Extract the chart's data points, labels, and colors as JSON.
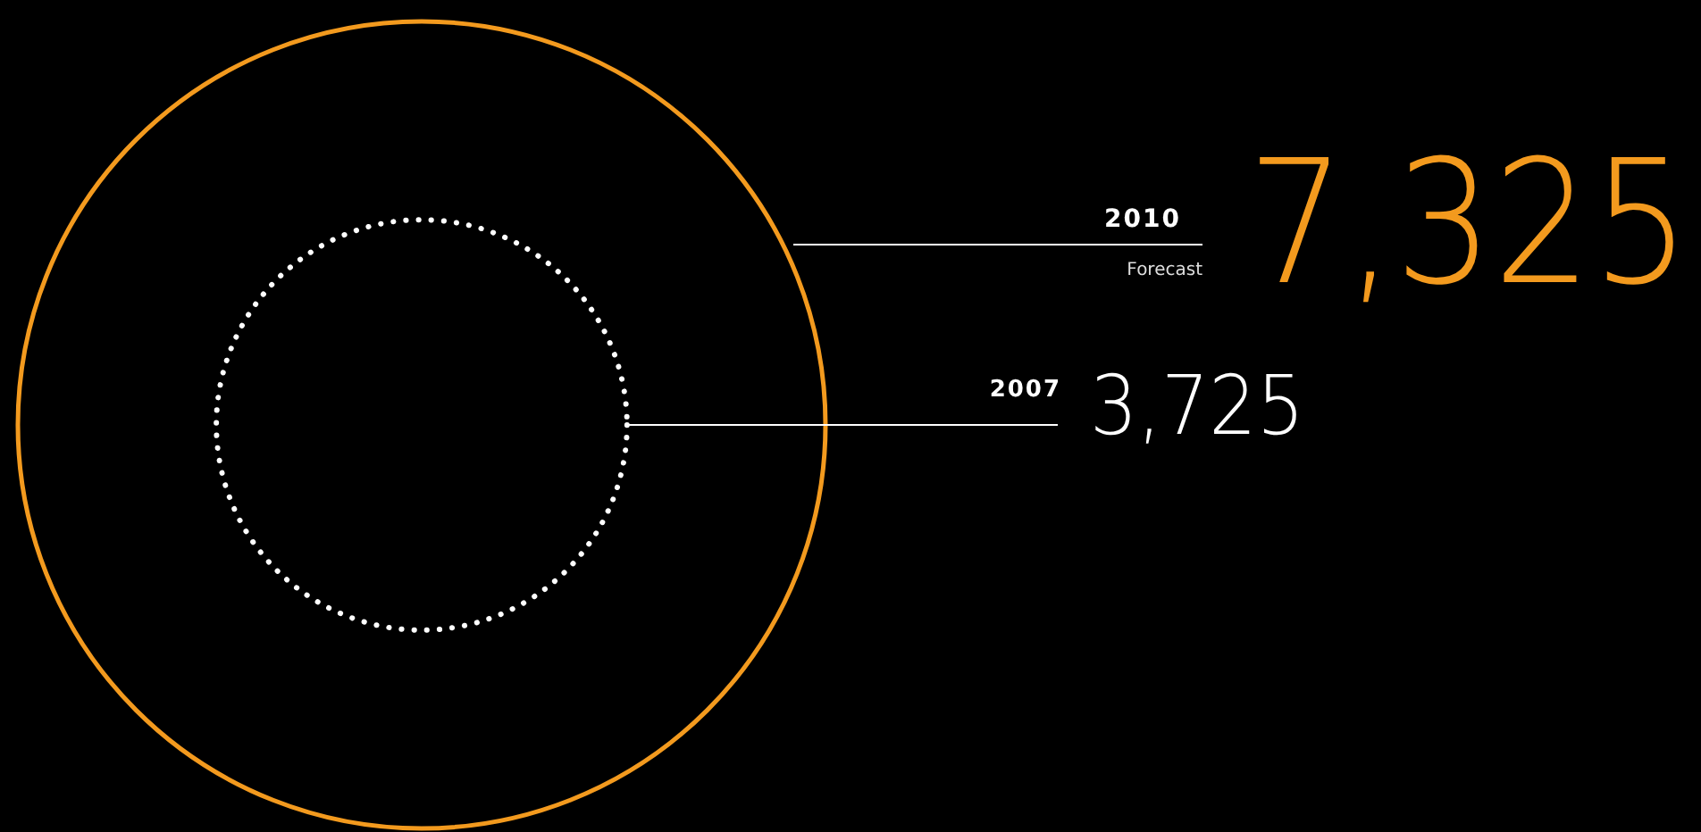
{
  "chart_data": {
    "type": "other",
    "categories": [
      "2010",
      "2007"
    ],
    "values": [
      7325,
      3725
    ],
    "value_labels": [
      "7,325",
      "3,725"
    ],
    "colors": [
      "#f39a1e",
      "#ffffff"
    ],
    "annotations": [
      "Forecast"
    ]
  }
}
